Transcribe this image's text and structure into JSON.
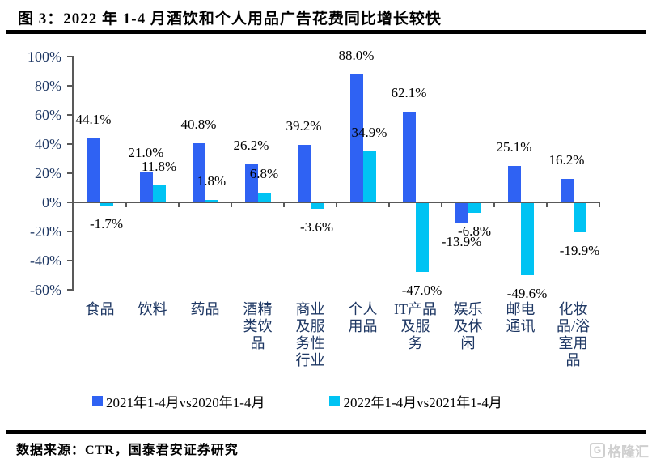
{
  "title": "图 3：2022 年 1-4 月酒饮和个人用品广告花费同比增长较快",
  "chart_data": {
    "type": "bar",
    "title": "2022 年 1-4 月酒饮和个人用品广告花费同比增长较快",
    "categories": [
      "食品",
      "饮料",
      "药品",
      "酒精类饮品",
      "商业及服务性行业",
      "个人用品",
      "IT产品及服务",
      "娱乐及休闲",
      "邮电通讯",
      "化妆品/浴室用品"
    ],
    "category_label_lines": [
      [
        "食品"
      ],
      [
        "饮料"
      ],
      [
        "药品"
      ],
      [
        "酒精",
        "类饮",
        "品"
      ],
      [
        "商业",
        "及服",
        "务性",
        "行业"
      ],
      [
        "个人",
        "用品"
      ],
      [
        "IT产品",
        "及服",
        "务"
      ],
      [
        "娱乐",
        "及休",
        "闲"
      ],
      [
        "邮电",
        "通讯"
      ],
      [
        "化妆",
        "品/浴",
        "室用",
        "品"
      ]
    ],
    "series": [
      {
        "name": "2021年1-4月vs2020年1-4月",
        "color": "#2F62F3",
        "values": [
          44.1,
          21.0,
          40.8,
          26.2,
          39.2,
          88.0,
          62.1,
          -13.9,
          25.1,
          16.2
        ]
      },
      {
        "name": "2022年1-4月vs2021年1-4月",
        "color": "#00C3F3",
        "values": [
          -1.7,
          11.8,
          1.8,
          6.8,
          -3.6,
          34.9,
          -47.0,
          -6.8,
          -49.6,
          -19.9
        ]
      }
    ],
    "data_label_format": "0.0%",
    "ylim": [
      -60,
      100
    ],
    "ytick_values": [
      100,
      80,
      60,
      40,
      20,
      0,
      -20,
      -40,
      -60
    ],
    "ytick_labels": [
      "100%",
      "80%",
      "60%",
      "40%",
      "20%",
      "0%",
      "-20%",
      "-40%",
      "-60%"
    ],
    "grid": false,
    "legend_position": "bottom"
  },
  "footer": {
    "source": "数据来源：CTR，国泰君安证券研究"
  },
  "watermark": {
    "icon": "G",
    "text": "格隆汇"
  },
  "colors": {
    "series1": "#2F62F3",
    "series2": "#00C3F3",
    "axis_text": "#1F3864",
    "data_label_text": "#000000",
    "axis_line": "#595959",
    "rule": "#000000",
    "watermark": "#cfcfcf"
  }
}
